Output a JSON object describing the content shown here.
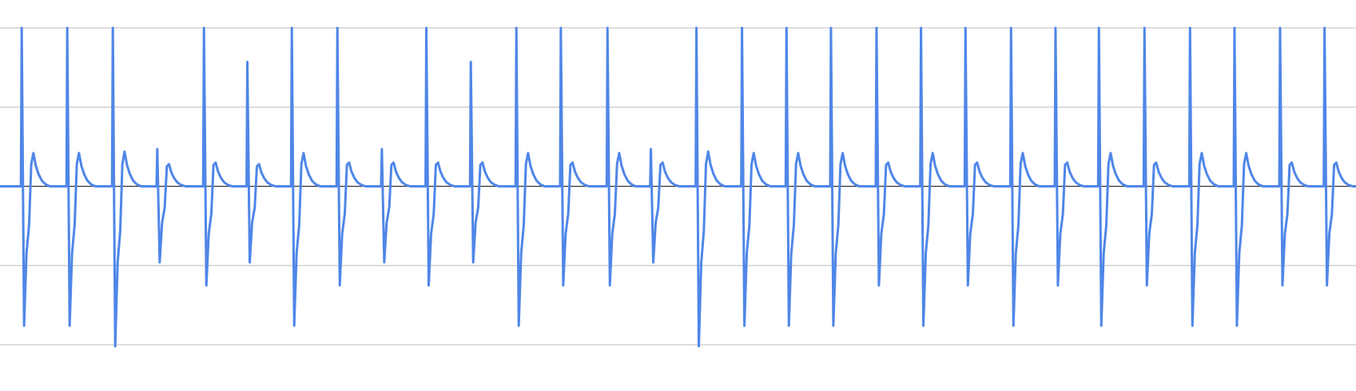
{
  "chart_data": {
    "type": "line",
    "title": "",
    "xlabel": "",
    "ylabel": "",
    "ylim": [
      -2,
      2
    ],
    "y_gridlines": [
      -2,
      -1,
      1,
      2
    ],
    "zero_line": true,
    "grid": true,
    "legend": "none",
    "series": [
      {
        "color": "#4F86E8",
        "spike_times": [
          2.0,
          6.2,
          10.4,
          14.5,
          18.8,
          22.8,
          26.9,
          31.1,
          35.2,
          39.3,
          43.4,
          47.6,
          51.7,
          56.0,
          60.0,
          64.2,
          68.4,
          72.5,
          76.6,
          80.8,
          84.9,
          89.0,
          93.2,
          97.3,
          101.3,
          105.5,
          109.7,
          113.8,
          118.0,
          122.1
        ],
        "spike_peaks": [
          2.0,
          2.0,
          2.0,
          0.47,
          2.0,
          1.57,
          2.0,
          2.0,
          0.47,
          2.0,
          1.57,
          2.0,
          2.0,
          2.0,
          0.47,
          2.0,
          2.0,
          2.0,
          2.0,
          2.0,
          2.0,
          2.0,
          2.0,
          2.0,
          2.0,
          2.0,
          2.0,
          2.0,
          2.0,
          2.0
        ],
        "spike_troughs": [
          -1.76,
          -1.76,
          -2.02,
          -0.96,
          -1.25,
          -0.96,
          -1.76,
          -1.25,
          -0.96,
          -1.25,
          -0.96,
          -1.76,
          -1.25,
          -1.25,
          -0.96,
          -2.02,
          -1.76,
          -1.76,
          -1.76,
          -1.25,
          -1.76,
          -1.25,
          -1.76,
          -1.25,
          -1.76,
          -1.25,
          -1.76,
          -1.76,
          -1.25,
          -1.25
        ],
        "rebound_peaks": [
          0.42,
          0.42,
          0.44,
          0.28,
          0.3,
          0.28,
          0.42,
          0.3,
          0.3,
          0.3,
          0.3,
          0.42,
          0.3,
          0.42,
          0.3,
          0.44,
          0.42,
          0.42,
          0.42,
          0.3,
          0.42,
          0.3,
          0.42,
          0.3,
          0.42,
          0.3,
          0.42,
          0.42,
          0.3,
          0.3
        ]
      }
    ]
  }
}
